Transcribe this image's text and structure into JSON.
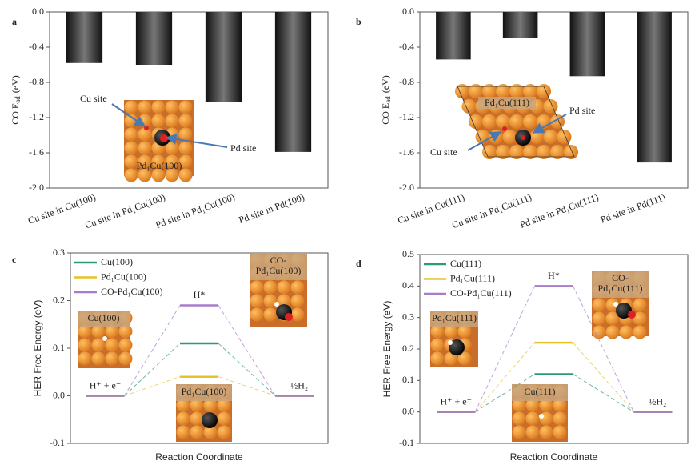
{
  "chart_data": [
    {
      "label": "a",
      "type": "bar",
      "ylabel": {
        "main": "CO E",
        "sub": "ad",
        "unit": "(eV)"
      },
      "categories": [
        "Cu site in Cu(100)",
        "Cu site in Pd₁Cu(100)",
        "Pd site in Pd₁Cu(100)",
        "Pd site in Pd(100)"
      ],
      "values": [
        -0.58,
        -0.6,
        -1.02,
        -1.59
      ],
      "ylim": [
        -2,
        0
      ],
      "yticks": [
        {
          "value": 0,
          "label": "0.0"
        },
        -0.4,
        -0.8,
        -1.2,
        -1.6,
        {
          "value": -2,
          "label": "-2.0"
        }
      ],
      "annotations": {
        "inset": "Pd₁Cu(100)",
        "cu_site": "Cu site",
        "pd_site": "Pd  site"
      }
    },
    {
      "label": "b",
      "type": "bar",
      "ylabel": {
        "main": "CO E",
        "sub": "ad",
        "unit": "(eV)"
      },
      "categories": [
        "Cu site in Cu(111)",
        "Cu site in Pd₁Cu(111)",
        "Pd site in Pd₁Cu(111)",
        "Pd site in Pd(111)"
      ],
      "values": [
        -0.54,
        -0.3,
        -0.73,
        -1.71
      ],
      "ylim": [
        -2,
        0
      ],
      "yticks": [
        {
          "value": 0,
          "label": "0.0"
        },
        -0.4,
        -0.8,
        -1.2,
        -1.6,
        {
          "value": -2,
          "label": "-2.0"
        }
      ],
      "annotations": {
        "inset": "Pd₁Cu(111)",
        "cu_site": "Cu site",
        "pd_site": "Pd site"
      }
    },
    {
      "label": "c",
      "type": "energy",
      "ylabel": "HER Free Energy (eV)",
      "xlabel": "Reaction Coordinate",
      "categories": [
        "H⁺ + e⁻",
        "H*",
        "½H₂"
      ],
      "series": [
        {
          "name": "Cu(100)",
          "color": "#2e9a72",
          "values": [
            0,
            0.11,
            0
          ]
        },
        {
          "name": "Pd₁Cu(100)",
          "color": "#e8c22a",
          "values": [
            0,
            0.04,
            0
          ]
        },
        {
          "name": "CO-Pd₁Cu(100)",
          "color": "#a87cc8",
          "values": [
            0,
            0.19,
            0
          ]
        }
      ],
      "ylim": [
        -0.1,
        0.3
      ],
      "yticks": [
        -0.1,
        {
          "value": 0,
          "label": "0.0"
        },
        0.1,
        0.2,
        0.3
      ],
      "insets": [
        [
          "Cu(100)"
        ],
        [
          "CO-",
          "Pd₁Cu(100)"
        ],
        [
          "Pd₁Cu(100)"
        ]
      ]
    },
    {
      "label": "d",
      "type": "energy",
      "ylabel": "HER Free Energy (eV)",
      "xlabel": "Reaction Coordinate",
      "categories": [
        "H⁺ + e⁻",
        "H*",
        "½H₂"
      ],
      "series": [
        {
          "name": "Cu(111)",
          "color": "#2e9a72",
          "values": [
            0,
            0.12,
            0
          ]
        },
        {
          "name": "Pd₁Cu(111)",
          "color": "#e8c22a",
          "values": [
            0,
            0.22,
            0
          ]
        },
        {
          "name": "CO-Pd₁Cu(111)",
          "color": "#a87cc8",
          "values": [
            0,
            0.4,
            0
          ]
        }
      ],
      "ylim": [
        -0.1,
        0.5
      ],
      "yticks": [
        -0.1,
        {
          "value": 0,
          "label": "0.0"
        },
        0.1,
        0.2,
        0.3,
        0.4,
        0.5
      ],
      "insets": [
        [
          "Pd₁Cu(111)"
        ],
        [
          "CO-",
          "Pd₁Cu(111)"
        ],
        [
          "Cu(111)"
        ]
      ]
    }
  ]
}
